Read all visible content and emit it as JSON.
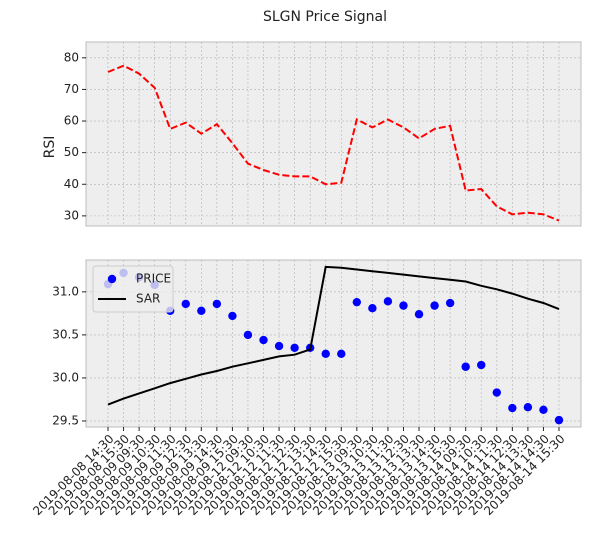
{
  "chart_data": [
    {
      "type": "line",
      "title": "SLGN Price Signal",
      "ylabel": "RSI",
      "color": "#ff0000",
      "linestyle": "dashed",
      "values": [
        75.5,
        77.5,
        75,
        70.5,
        57.5,
        59.5,
        56,
        59,
        53,
        46.5,
        44.5,
        43,
        42.5,
        42.5,
        40,
        40.5,
        60.5,
        58,
        60.5,
        58,
        54.5,
        57.5,
        58.5,
        38,
        38.5,
        33,
        30.5,
        31,
        30.5,
        28.5
      ],
      "ylim": [
        26.8,
        85
      ],
      "yticks": [
        30,
        40,
        50,
        60,
        70,
        80
      ],
      "grid": true
    },
    {
      "type": "scatter",
      "legend": "upper left",
      "grid": true,
      "categories": [
        "2019-08-08 14:30",
        "2019-08-08 15:30",
        "2019-08-09 09:30",
        "2019-08-09 10:30",
        "2019-08-09 11:30",
        "2019-08-09 12:30",
        "2019-08-09 13:30",
        "2019-08-09 14:30",
        "2019-08-09 15:30",
        "2019-08-12 09:30",
        "2019-08-12 10:30",
        "2019-08-12 11:30",
        "2019-08-12 12:30",
        "2019-08-12 13:30",
        "2019-08-12 14:30",
        "2019-08-12 15:30",
        "2019-08-13 09:30",
        "2019-08-13 10:30",
        "2019-08-13 11:30",
        "2019-08-13 12:30",
        "2019-08-13 13:30",
        "2019-08-13 14:30",
        "2019-08-13 15:30",
        "2019-08-14 09:30",
        "2019-08-14 10:30",
        "2019-08-14 11:30",
        "2019-08-14 12:30",
        "2019-08-14 13:30",
        "2019-08-14 14:30",
        "2019-08-14 15:30"
      ],
      "series": [
        {
          "name": "PRICE",
          "type": "scatter",
          "color": "#0000ff",
          "values": [
            31.09,
            31.22,
            31.17,
            31.08,
            30.78,
            30.86,
            30.78,
            30.86,
            30.72,
            30.5,
            30.44,
            30.37,
            30.35,
            30.35,
            30.28,
            30.28,
            30.88,
            30.81,
            30.89,
            30.84,
            30.74,
            30.84,
            30.87,
            30.13,
            30.15,
            29.83,
            29.65,
            29.66,
            29.63,
            29.51
          ]
        },
        {
          "name": "SAR",
          "type": "line",
          "color": "#000000",
          "values": [
            29.69,
            29.76,
            29.82,
            29.88,
            29.94,
            29.99,
            30.04,
            30.08,
            30.13,
            30.17,
            30.21,
            30.25,
            30.27,
            30.33,
            31.29,
            31.28,
            31.26,
            31.24,
            31.22,
            31.2,
            31.18,
            31.16,
            31.14,
            31.12,
            31.07,
            31.03,
            30.98,
            30.92,
            30.87,
            30.8
          ]
        }
      ],
      "ylim": [
        29.43,
        31.37
      ],
      "yticks": [
        29.5,
        {
          "value": 30,
          "label": "30.0"
        },
        30.5,
        {
          "value": 31,
          "label": "31.0"
        }
      ]
    }
  ]
}
